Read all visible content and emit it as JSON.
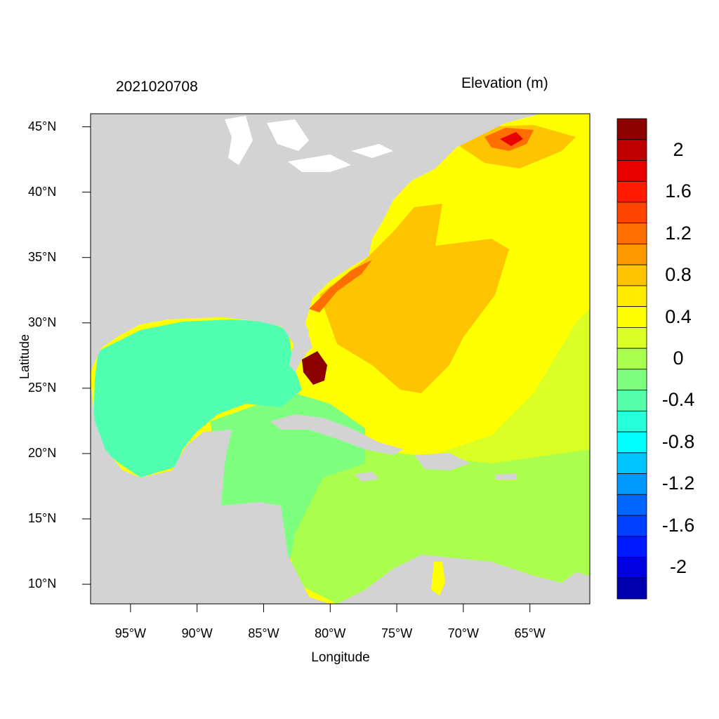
{
  "date_label": "2021020708",
  "variable_label": "Elevation (m)",
  "axes": {
    "xlabel": "Longitude",
    "ylabel": "Latitude",
    "lon_range": [
      -98,
      -60.5
    ],
    "lat_range": [
      8.5,
      46
    ],
    "lat_ticks": [
      "45°N",
      "40°N",
      "35°N",
      "30°N",
      "25°N",
      "20°N",
      "15°N",
      "10°N"
    ],
    "lon_ticks": [
      "95°W",
      "90°W",
      "85°W",
      "80°W",
      "75°W",
      "70°W",
      "65°W"
    ]
  },
  "colorbar": {
    "labels": [
      "2",
      "1.6",
      "1.2",
      "0.8",
      "0.4",
      "0",
      "-0.4",
      "-0.8",
      "-1.2",
      "-1.6",
      "-2"
    ],
    "colors_top_to_bottom": [
      "#8b0000",
      "#bf0000",
      "#e80000",
      "#ff1a00",
      "#ff4400",
      "#ff6e00",
      "#ff9900",
      "#ffc400",
      "#ffec00",
      "#ffff00",
      "#d9ff26",
      "#aaff4e",
      "#7fff7f",
      "#55ffaa",
      "#26ffd9",
      "#00ffff",
      "#00c4ff",
      "#0099ff",
      "#0066ff",
      "#0040ff",
      "#0019ff",
      "#0000e0",
      "#0000b0"
    ]
  },
  "colors": {
    "land": "#d3d3d3",
    "water_lake": "#ffffff",
    "gulf": "#50ffb0",
    "caribbean_west": "#7fff7f",
    "caribbean_east": "#aaff4e",
    "atlantic": "#ffff00",
    "atlantic_high": "#ffc400",
    "coast_surge": "#ff6e00",
    "extreme": "#8b0000"
  }
}
